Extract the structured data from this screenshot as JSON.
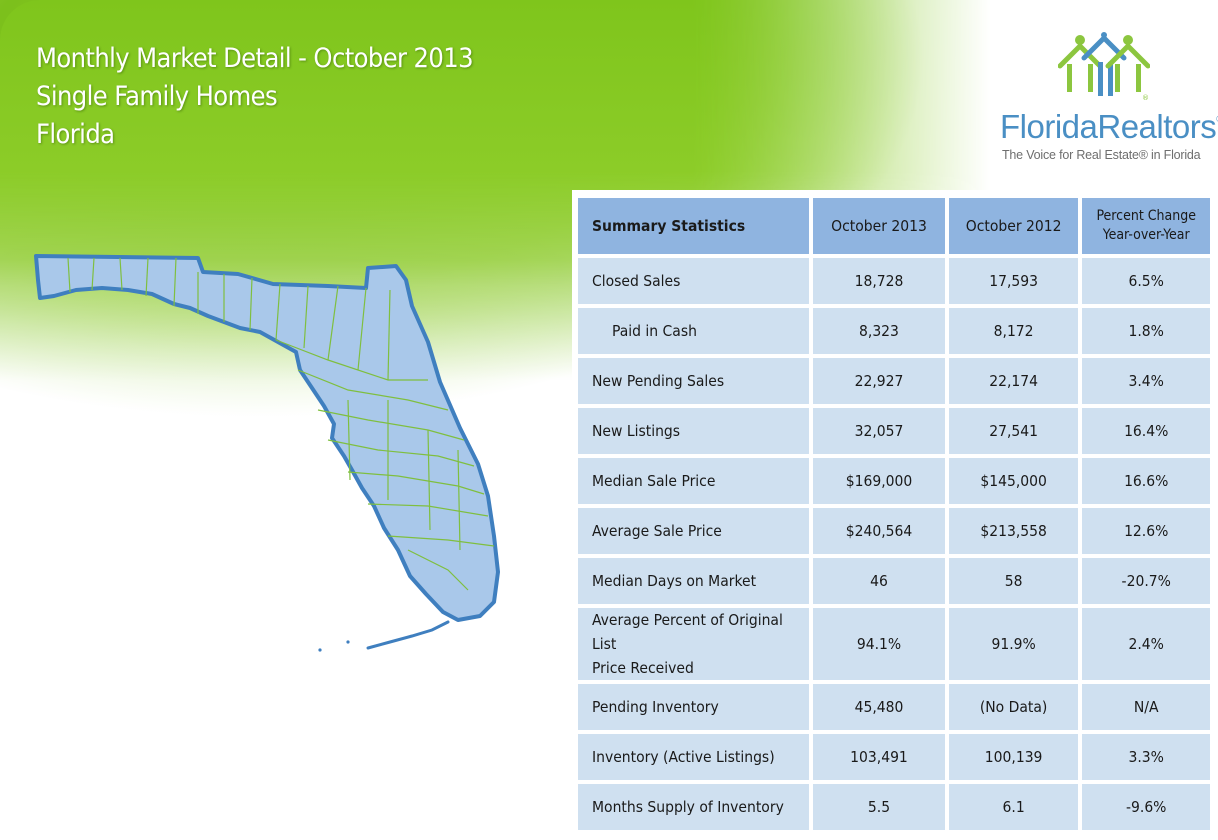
{
  "header": {
    "title": "Monthly Market Detail - October 2013",
    "subtitle": "Single Family Homes",
    "region": "Florida"
  },
  "logo": {
    "brand_part1": "Florida",
    "brand_part2": "Realtors",
    "registered_mark": "®",
    "tagline": "The Voice for Real Estate® in Florida",
    "icon": "houses-people-logo-icon"
  },
  "map": {
    "icon": "florida-county-map-icon"
  },
  "table": {
    "headers": [
      "Summary Statistics",
      "October 2013",
      "October 2012",
      "Percent Change Year-over-Year"
    ],
    "header_pct_line1": "Percent Change",
    "header_pct_line2": "Year-over-Year",
    "rows": [
      {
        "label": "Closed Sales",
        "oct2013": "18,728",
        "oct2012": "17,593",
        "change": "6.5%"
      },
      {
        "label": "Paid in Cash",
        "oct2013": "8,323",
        "oct2012": "8,172",
        "change": "1.8%"
      },
      {
        "label": "New Pending Sales",
        "oct2013": "22,927",
        "oct2012": "22,174",
        "change": "3.4%"
      },
      {
        "label": "New Listings",
        "oct2013": "32,057",
        "oct2012": "27,541",
        "change": "16.4%"
      },
      {
        "label": "Median Sale Price",
        "oct2013": "$169,000",
        "oct2012": "$145,000",
        "change": "16.6%"
      },
      {
        "label": "Average Sale Price",
        "oct2013": "$240,564",
        "oct2012": "$213,558",
        "change": "12.6%"
      },
      {
        "label": "Median Days on Market",
        "oct2013": "46",
        "oct2012": "58",
        "change": "-20.7%"
      },
      {
        "label": "Average Percent of Original List Price Received",
        "label_line1": "Average Percent of Original List",
        "label_line2": "Price Received",
        "oct2013": "94.1%",
        "oct2012": "91.9%",
        "change": "2.4%"
      },
      {
        "label": "Pending Inventory",
        "oct2013": "45,480",
        "oct2012": "(No Data)",
        "change": "N/A"
      },
      {
        "label": "Inventory (Active Listings)",
        "oct2013": "103,491",
        "oct2012": "100,139",
        "change": "3.3%"
      },
      {
        "label": "Months Supply of Inventory",
        "oct2013": "5.5",
        "oct2012": "6.1",
        "change": "-9.6%"
      }
    ]
  },
  "colors": {
    "green": "#7fc51c",
    "header_blue": "#8fb4e0",
    "cell_blue": "#cfe0f0",
    "map_fill": "#a9c8ea",
    "map_border": "#3f7fbf",
    "county_line": "#7fbf3f"
  }
}
